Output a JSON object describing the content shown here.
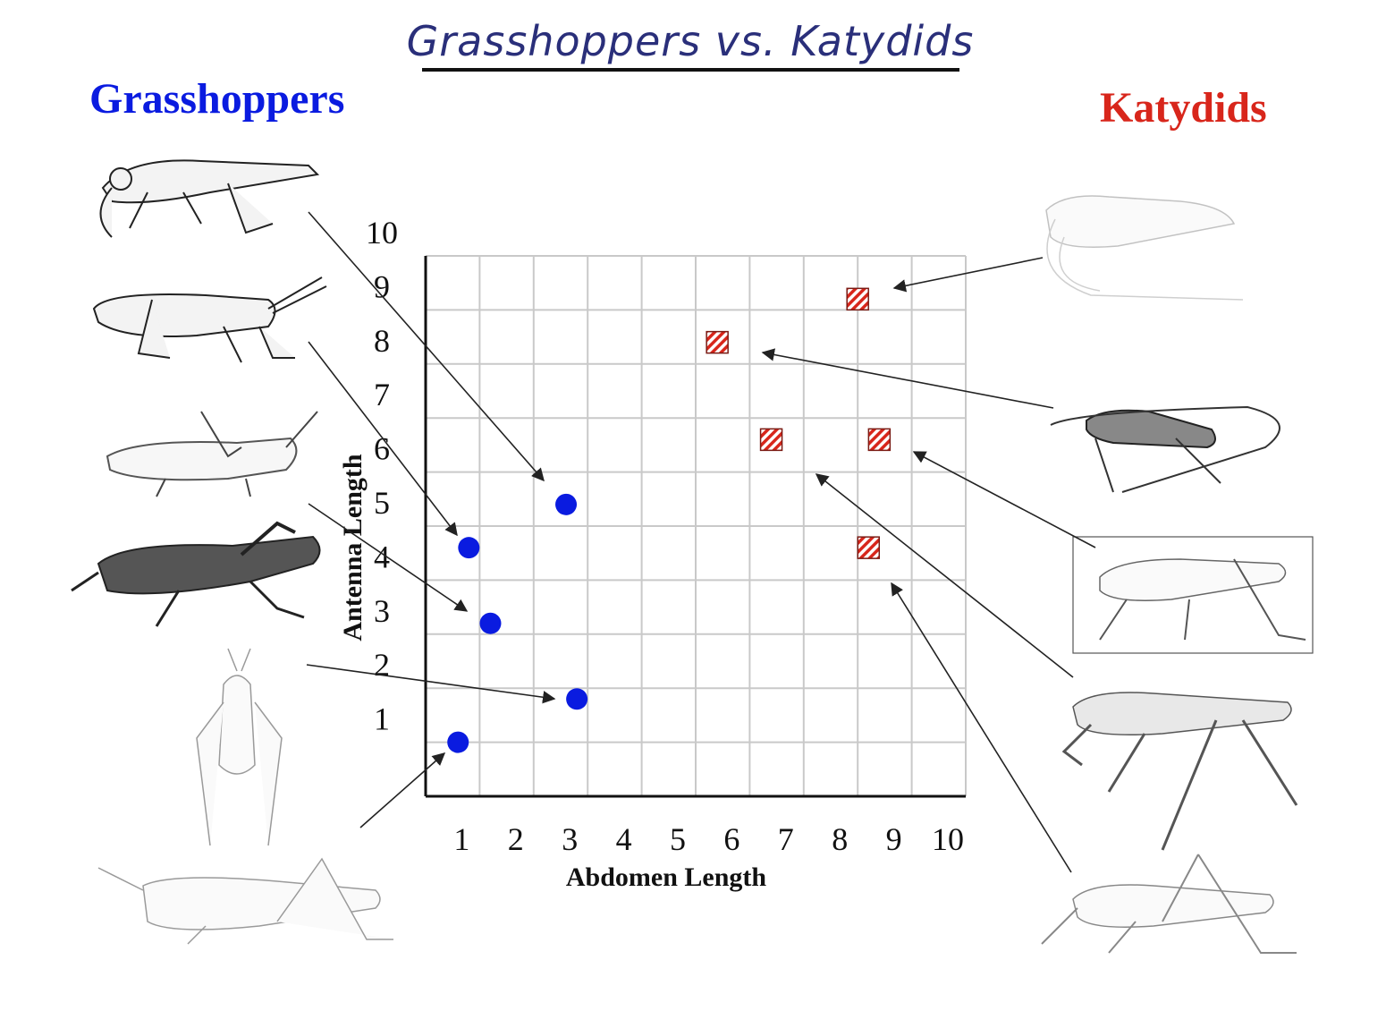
{
  "page_title": "Grasshoppers vs. Katydids",
  "colors": {
    "grasshopper": "#0a1be0",
    "katydid": "#d8261b",
    "title_ink": "#2a2f7a"
  },
  "icons": [
    "grasshopper-illustration",
    "katydid-illustration"
  ],
  "chart_data": {
    "type": "scatter",
    "xlabel": "Abdomen Length",
    "ylabel": "Antenna Length",
    "xlim": [
      0,
      10
    ],
    "ylim": [
      0,
      10
    ],
    "xticks": [
      "1",
      "2",
      "3",
      "4",
      "5",
      "6",
      "7",
      "8",
      "9",
      "10"
    ],
    "yticks": [
      "1",
      "2",
      "3",
      "4",
      "5",
      "6",
      "7",
      "8",
      "9",
      "10"
    ],
    "grid": true,
    "series": [
      {
        "name": "Grasshoppers",
        "marker": "circle",
        "points": [
          {
            "x": 0.6,
            "y": 1.0
          },
          {
            "x": 2.8,
            "y": 1.8
          },
          {
            "x": 1.2,
            "y": 3.2
          },
          {
            "x": 0.8,
            "y": 4.6
          },
          {
            "x": 2.6,
            "y": 5.4
          }
        ]
      },
      {
        "name": "Katydids",
        "marker": "hatched-square",
        "points": [
          {
            "x": 8.2,
            "y": 4.6
          },
          {
            "x": 6.4,
            "y": 6.6
          },
          {
            "x": 8.4,
            "y": 6.6
          },
          {
            "x": 5.4,
            "y": 8.4
          },
          {
            "x": 8.0,
            "y": 9.2
          }
        ]
      }
    ]
  }
}
